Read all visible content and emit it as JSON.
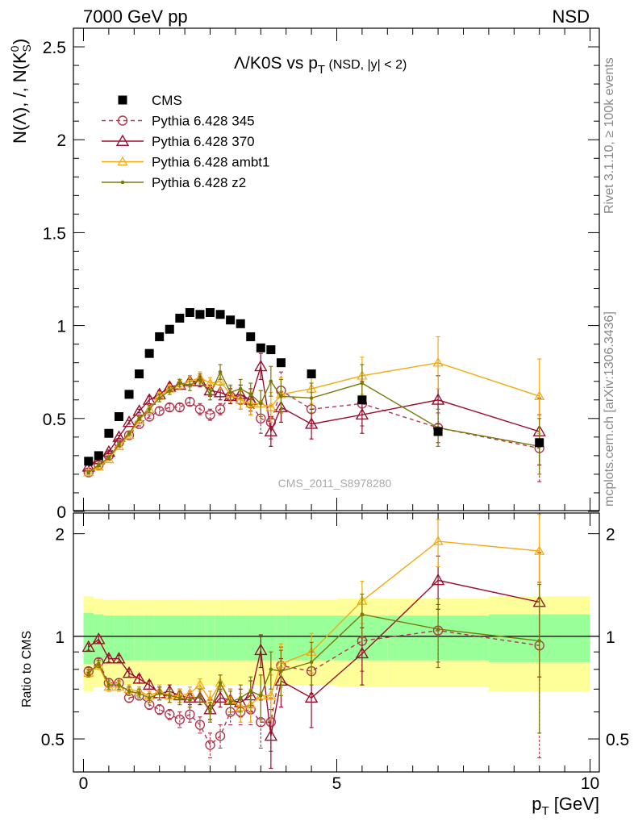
{
  "header": {
    "left": "7000 GeV pp",
    "right": "NSD"
  },
  "side_text": {
    "rivet": "Rivet 3.1.10, ≥ 100k events",
    "mcplots": "mcplots.cern.ch [arXiv:1306.3436]"
  },
  "watermark": "CMS_2011_S8978280",
  "main_plot": {
    "title_main": "Λ/K0S vs p",
    "title_sub": "T",
    "title_tail": " (NSD, |y| < 2)",
    "ylabel_pre": "N(Λ), /, N(K",
    "ylabel_sup": "0",
    "ylabel_sub": "S",
    "ylabel_post": ")",
    "yticks": [
      "0",
      "0.5",
      "1",
      "1.5",
      "2",
      "2.5"
    ]
  },
  "ratio_plot": {
    "ylabel": "Ratio to CMS",
    "yticks": [
      "0.5",
      "1",
      "2"
    ],
    "yticks_right": [
      "0.5",
      "1",
      "2"
    ]
  },
  "xaxis": {
    "label_pre": "p",
    "label_sub": "T",
    "label_post": " [GeV]",
    "ticks": [
      "0",
      "5",
      "10"
    ]
  },
  "legend": [
    {
      "label": "CMS"
    },
    {
      "label": "Pythia 6.428 345"
    },
    {
      "label": "Pythia 6.428 370"
    },
    {
      "label": "Pythia 6.428 ambt1"
    },
    {
      "label": "Pythia 6.428 z2"
    }
  ],
  "chart_data": {
    "type": "scatter",
    "xlim": [
      0,
      10
    ],
    "ylim_main": [
      0,
      2.6
    ],
    "ylim_ratio": [
      0.4,
      2.3
    ],
    "ratio_scale": "log",
    "x_bins": [
      [
        0.0,
        0.2
      ],
      [
        0.2,
        0.4
      ],
      [
        0.4,
        0.6
      ],
      [
        0.6,
        0.8
      ],
      [
        0.8,
        1.0
      ],
      [
        1.0,
        1.2
      ],
      [
        1.2,
        1.4
      ],
      [
        1.4,
        1.6
      ],
      [
        1.6,
        1.8
      ],
      [
        1.8,
        2.0
      ],
      [
        2.0,
        2.2
      ],
      [
        2.2,
        2.4
      ],
      [
        2.4,
        2.6
      ],
      [
        2.6,
        2.8
      ],
      [
        2.8,
        3.0
      ],
      [
        3.0,
        3.2
      ],
      [
        3.2,
        3.4
      ],
      [
        3.4,
        3.6
      ],
      [
        3.6,
        3.8
      ],
      [
        3.8,
        4.0
      ],
      [
        4.0,
        5.0
      ],
      [
        5.0,
        6.0
      ],
      [
        6.0,
        8.0
      ],
      [
        8.0,
        10.0
      ]
    ],
    "x": [
      0.1,
      0.3,
      0.5,
      0.7,
      0.9,
      1.1,
      1.3,
      1.5,
      1.7,
      1.9,
      2.1,
      2.3,
      2.5,
      2.7,
      2.9,
      3.1,
      3.3,
      3.5,
      3.7,
      3.9,
      4.5,
      5.5,
      7.0,
      9.0
    ],
    "series": [
      {
        "name": "CMS",
        "color": "#000000",
        "y": [
          0.27,
          0.3,
          0.42,
          0.51,
          0.63,
          0.74,
          0.85,
          0.94,
          0.98,
          1.04,
          1.07,
          1.06,
          1.07,
          1.06,
          1.03,
          1.01,
          0.94,
          0.88,
          0.87,
          0.8,
          0.74,
          0.6,
          0.43,
          0.37
        ]
      },
      {
        "name": "Pythia 6.428 345",
        "color": "#b0384f",
        "y": [
          0.21,
          0.25,
          0.3,
          0.37,
          0.41,
          0.47,
          0.51,
          0.54,
          0.56,
          0.56,
          0.59,
          0.55,
          0.52,
          0.55,
          0.62,
          0.6,
          0.58,
          0.5,
          0.48,
          0.65,
          0.55,
          0.58,
          0.45,
          0.34
        ],
        "err": [
          0.01,
          0.01,
          0.01,
          0.01,
          0.01,
          0.01,
          0.01,
          0.02,
          0.02,
          0.02,
          0.02,
          0.03,
          0.03,
          0.03,
          0.04,
          0.05,
          0.06,
          0.08,
          0.09,
          0.1,
          0.09,
          0.12,
          0.08,
          0.18
        ],
        "ratio": [
          0.79,
          0.84,
          0.73,
          0.73,
          0.66,
          0.67,
          0.63,
          0.61,
          0.59,
          0.57,
          0.59,
          0.55,
          0.48,
          0.51,
          0.6,
          0.6,
          0.61,
          0.56,
          0.56,
          0.82,
          0.79,
          0.97,
          1.04,
          0.94
        ],
        "ratio_err": [
          0.02,
          0.02,
          0.02,
          0.02,
          0.02,
          0.02,
          0.02,
          0.02,
          0.02,
          0.03,
          0.03,
          0.03,
          0.04,
          0.04,
          0.05,
          0.05,
          0.06,
          0.09,
          0.1,
          0.11,
          0.11,
          0.18,
          0.2,
          0.5
        ]
      },
      {
        "name": "Pythia 6.428 370",
        "color": "#9b0f2d",
        "y": [
          0.24,
          0.28,
          0.32,
          0.4,
          0.48,
          0.54,
          0.6,
          0.63,
          0.67,
          0.68,
          0.7,
          0.7,
          0.65,
          0.64,
          0.62,
          0.63,
          0.6,
          0.78,
          0.43,
          0.56,
          0.47,
          0.52,
          0.6,
          0.43
        ],
        "err": [
          0.01,
          0.01,
          0.01,
          0.01,
          0.01,
          0.01,
          0.02,
          0.02,
          0.02,
          0.02,
          0.03,
          0.03,
          0.03,
          0.04,
          0.04,
          0.05,
          0.06,
          0.07,
          0.08,
          0.08,
          0.08,
          0.1,
          0.13,
          0.18
        ],
        "ratio": [
          0.93,
          0.98,
          0.86,
          0.86,
          0.78,
          0.75,
          0.72,
          0.68,
          0.69,
          0.67,
          0.66,
          0.66,
          0.61,
          0.66,
          0.65,
          0.64,
          0.67,
          0.91,
          0.51,
          0.74,
          0.66,
          0.89,
          1.46,
          1.26
        ],
        "ratio_err": [
          0.02,
          0.02,
          0.02,
          0.02,
          0.02,
          0.02,
          0.02,
          0.03,
          0.03,
          0.03,
          0.03,
          0.03,
          0.04,
          0.04,
          0.05,
          0.06,
          0.07,
          0.1,
          0.1,
          0.12,
          0.12,
          0.17,
          0.26,
          0.5
        ]
      },
      {
        "name": "Pythia 6.428 ambt1",
        "color": "#f3a90d",
        "y": [
          0.21,
          0.24,
          0.28,
          0.35,
          0.41,
          0.49,
          0.55,
          0.62,
          0.66,
          0.68,
          0.7,
          0.72,
          0.69,
          0.7,
          0.63,
          0.6,
          0.58,
          0.58,
          0.56,
          0.63,
          0.66,
          0.73,
          0.8,
          0.62
        ],
        "err": [
          0.01,
          0.01,
          0.01,
          0.01,
          0.01,
          0.01,
          0.02,
          0.02,
          0.02,
          0.02,
          0.03,
          0.03,
          0.03,
          0.04,
          0.04,
          0.05,
          0.06,
          0.07,
          0.08,
          0.09,
          0.08,
          0.1,
          0.14,
          0.2
        ],
        "ratio": [
          0.78,
          0.82,
          0.71,
          0.71,
          0.7,
          0.69,
          0.67,
          0.69,
          0.67,
          0.67,
          0.68,
          0.72,
          0.65,
          0.73,
          0.65,
          0.62,
          0.63,
          0.67,
          0.67,
          0.83,
          0.9,
          1.27,
          1.9,
          1.78
        ],
        "ratio_err": [
          0.02,
          0.02,
          0.02,
          0.02,
          0.02,
          0.02,
          0.02,
          0.03,
          0.03,
          0.03,
          0.03,
          0.03,
          0.04,
          0.04,
          0.05,
          0.06,
          0.07,
          0.1,
          0.1,
          0.12,
          0.12,
          0.18,
          0.3,
          0.5
        ]
      },
      {
        "name": "Pythia 6.428 z2",
        "color": "#7a7a0a",
        "y": [
          0.21,
          0.25,
          0.29,
          0.36,
          0.42,
          0.5,
          0.55,
          0.61,
          0.65,
          0.69,
          0.68,
          0.71,
          0.63,
          0.75,
          0.64,
          0.66,
          0.63,
          0.58,
          0.7,
          0.62,
          0.61,
          0.69,
          0.45,
          0.35
        ],
        "err": [
          0.01,
          0.01,
          0.01,
          0.01,
          0.01,
          0.01,
          0.02,
          0.02,
          0.02,
          0.02,
          0.03,
          0.03,
          0.03,
          0.04,
          0.04,
          0.05,
          0.06,
          0.07,
          0.08,
          0.09,
          0.08,
          0.1,
          0.1,
          0.15
        ],
        "ratio": [
          0.78,
          0.83,
          0.72,
          0.72,
          0.69,
          0.68,
          0.66,
          0.68,
          0.67,
          0.66,
          0.65,
          0.67,
          0.6,
          0.73,
          0.64,
          0.66,
          0.69,
          0.67,
          0.8,
          0.79,
          0.84,
          1.16,
          1.05,
          0.97
        ],
        "ratio_err": [
          0.02,
          0.02,
          0.02,
          0.02,
          0.02,
          0.02,
          0.02,
          0.03,
          0.03,
          0.03,
          0.03,
          0.03,
          0.04,
          0.04,
          0.05,
          0.06,
          0.07,
          0.1,
          0.1,
          0.12,
          0.12,
          0.17,
          0.24,
          0.45
        ]
      }
    ],
    "ratio_bands": {
      "yellow_rel_unc": [
        0.31,
        0.29,
        0.28,
        0.28,
        0.28,
        0.28,
        0.28,
        0.28,
        0.28,
        0.28,
        0.28,
        0.28,
        0.28,
        0.28,
        0.28,
        0.28,
        0.28,
        0.28,
        0.28,
        0.28,
        0.28,
        0.29,
        0.29,
        0.31
      ],
      "green_rel_unc": [
        0.17,
        0.16,
        0.15,
        0.15,
        0.15,
        0.15,
        0.15,
        0.15,
        0.15,
        0.15,
        0.15,
        0.15,
        0.15,
        0.15,
        0.15,
        0.15,
        0.15,
        0.15,
        0.15,
        0.15,
        0.15,
        0.15,
        0.15,
        0.16
      ]
    }
  }
}
